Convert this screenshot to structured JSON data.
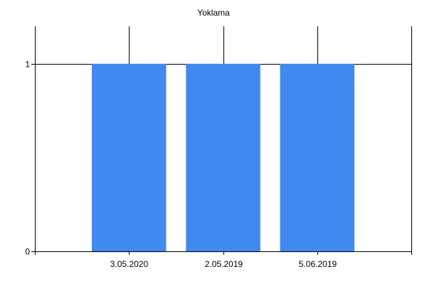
{
  "chart_data": {
    "type": "bar",
    "title": "Yoklama",
    "categories": [
      "3.05.2020",
      "2.05.2019",
      "5.06.2019"
    ],
    "values": [
      1,
      1,
      1
    ],
    "xlabel": "",
    "ylabel": "",
    "ylim": [
      0,
      1.2
    ],
    "yticks": [
      0,
      1
    ],
    "grid": true,
    "legend": "none",
    "bar_color": "#4189ef",
    "axis_color": "#000000"
  }
}
